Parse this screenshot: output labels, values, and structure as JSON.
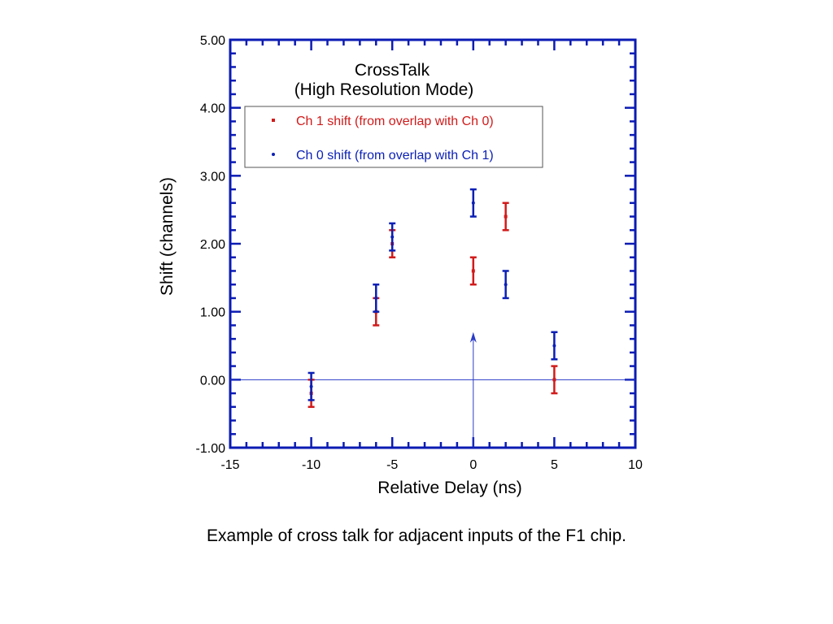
{
  "chart_data": {
    "type": "scatter",
    "title": "CrossTalk",
    "subtitle": "(High Resolution Mode)",
    "xlabel": "Relative Delay (ns)",
    "ylabel": "Shift (channels)",
    "xlim": [
      -15,
      10
    ],
    "ylim": [
      -1,
      5
    ],
    "x_ticks": [
      "-15",
      "-10",
      "-5",
      "0",
      "5",
      "10"
    ],
    "y_ticks": [
      "-1.00",
      "0.00",
      "1.00",
      "2.00",
      "3.00",
      "4.00",
      "5.00"
    ],
    "grid": false,
    "legend_position": "top-left",
    "frame_color": "#0b1bb3",
    "series": [
      {
        "name": "Ch 1 shift (from overlap with Ch 0)",
        "color": "#d11a1a",
        "marker": "square",
        "points": [
          {
            "x": -10,
            "y": -0.2,
            "err": 0.2
          },
          {
            "x": -6,
            "y": 1.0,
            "err": 0.2
          },
          {
            "x": -5,
            "y": 2.0,
            "err": 0.2
          },
          {
            "x": 0,
            "y": 1.6,
            "err": 0.2
          },
          {
            "x": 2,
            "y": 2.4,
            "err": 0.2
          },
          {
            "x": 5,
            "y": 0.0,
            "err": 0.2
          }
        ]
      },
      {
        "name": "Ch 0 shift (from overlap with Ch 1)",
        "color": "#0a1fb5",
        "marker": "dot",
        "points": [
          {
            "x": -10,
            "y": -0.1,
            "err": 0.2
          },
          {
            "x": -6,
            "y": 1.2,
            "err": 0.2
          },
          {
            "x": -5,
            "y": 2.1,
            "err": 0.2
          },
          {
            "x": 0,
            "y": 2.6,
            "err": 0.2
          },
          {
            "x": 2,
            "y": 1.4,
            "err": 0.2
          },
          {
            "x": 5,
            "y": 0.5,
            "err": 0.2
          }
        ]
      }
    ],
    "reference_lines": {
      "horizontal_y": 0,
      "arrow": {
        "x": 0,
        "from_y": -1,
        "to_y": 0.7
      }
    }
  },
  "caption": "Example of cross talk for adjacent inputs of the F1 chip."
}
